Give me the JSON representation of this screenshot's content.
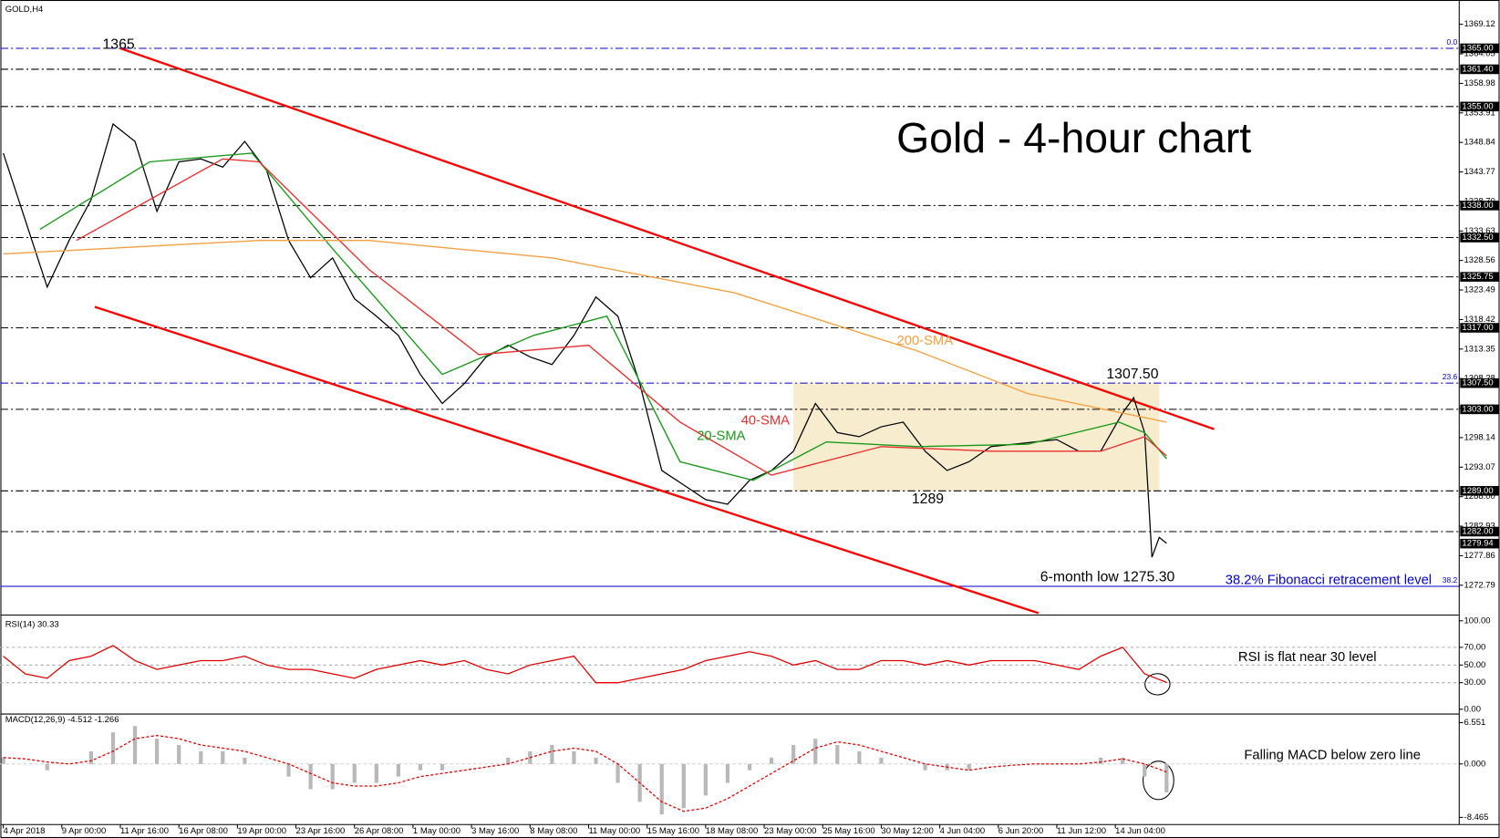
{
  "chart_data": [
    {
      "type": "line",
      "title": "GOLD,H4",
      "heading": "Gold - 4-hour chart",
      "xlim": [
        0,
        398
      ],
      "xticks": [
        {
          "value": 0,
          "label": "4 Apr 2018"
        },
        {
          "value": 16,
          "label": "9 Apr 00:00"
        },
        {
          "value": 32,
          "label": "11 Apr 16:00"
        },
        {
          "value": 48,
          "label": "16 Apr 08:00"
        },
        {
          "value": 64,
          "label": "19 Apr 00:00"
        },
        {
          "value": 80,
          "label": "23 Apr 16:00"
        },
        {
          "value": 96,
          "label": "26 Apr 08:00"
        },
        {
          "value": 112,
          "label": "1 May 00:00"
        },
        {
          "value": 128,
          "label": "3 May 16:00"
        },
        {
          "value": 144,
          "label": "8 May 08:00"
        },
        {
          "value": 160,
          "label": "11 May 00:00"
        },
        {
          "value": 176,
          "label": "15 May 16:00"
        },
        {
          "value": 192,
          "label": "18 May 08:00"
        },
        {
          "value": 208,
          "label": "23 May 00:00"
        },
        {
          "value": 224,
          "label": "25 May 16:00"
        },
        {
          "value": 240,
          "label": "30 May 12:00"
        },
        {
          "value": 256,
          "label": "4 Jun 04:00"
        },
        {
          "value": 272,
          "label": "6 Jun 20:00"
        },
        {
          "value": 288,
          "label": "11 Jun 12:00"
        },
        {
          "value": 304,
          "label": "14 Jun 04:00"
        }
      ],
      "ylim": [
        1268,
        1372.8
      ],
      "yticks": [
        1369.12,
        1364.05,
        1358.98,
        1353.91,
        1348.84,
        1343.77,
        {
          "value": 1338.7,
          "label": "1338.70"
        },
        1333.63,
        1328.56,
        1323.49,
        1318.42,
        1313.35,
        1308.28,
        1303.21,
        1298.14,
        1293.07,
        {
          "value": 1288,
          "label": "1288.00"
        },
        1282.93,
        1277.86,
        1272.79
      ],
      "levels": [
        {
          "value": 1361.4,
          "label": "1361.40"
        },
        {
          "value": 1355,
          "label": "1355.00"
        },
        {
          "value": 1338,
          "label": "1338.00"
        },
        {
          "value": 1332.5,
          "label": "1332.50"
        },
        {
          "value": 1325.75,
          "label": "1325.75"
        },
        {
          "value": 1317,
          "label": "1317.00"
        },
        {
          "value": 1303,
          "label": "1303.00"
        },
        {
          "value": 1289,
          "label": "1289.00"
        },
        {
          "value": 1282,
          "label": "1282.00"
        }
      ],
      "fib_levels": [
        {
          "value": 1365,
          "label": "0.0",
          "price_label": "1365.00"
        },
        {
          "value": 1307.5,
          "label": "23.6",
          "price_label": "1307.50"
        },
        {
          "value": 1272.6,
          "label": "38.2"
        }
      ],
      "fib_color": "#0000cc",
      "last_price": {
        "value": 1279.94,
        "label": "1279.94"
      },
      "range_box": {
        "x": [
          216,
          316
        ],
        "values": [
          1307.5,
          1289
        ],
        "color": "#f3dfae"
      },
      "trendlines": [
        {
          "x": [
            32,
            331
          ],
          "values": [
            1365,
            1299.6
          ],
          "color": "#ff0000"
        },
        {
          "x": [
            25,
            283
          ],
          "values": [
            1320.6,
            1268
          ],
          "color": "#ff0000"
        }
      ],
      "series": [
        {
          "color": "#000000",
          "x": [
            0,
            6,
            12,
            18,
            24,
            30,
            36,
            42,
            48,
            54,
            60,
            66,
            72,
            78,
            84,
            90,
            96,
            102,
            108,
            114,
            120,
            126,
            132,
            138,
            144,
            150,
            156,
            162,
            168,
            174,
            180,
            186,
            192,
            198,
            204,
            210,
            216,
            222,
            228,
            234,
            240,
            246,
            252,
            258,
            264,
            270,
            276,
            282,
            288,
            294,
            300,
            306,
            309,
            312,
            314,
            316,
            318
          ],
          "values": [
            1347,
            1335.5,
            1324,
            1332,
            1339,
            1352,
            1349,
            1337,
            1345.5,
            1346,
            1344.6,
            1349,
            1344,
            1332,
            1325.6,
            1329,
            1322,
            1319,
            1315.7,
            1309,
            1304,
            1307.4,
            1312,
            1314,
            1312,
            1310.7,
            1315.7,
            1322.3,
            1319,
            1307.4,
            1292.5,
            1290,
            1287.5,
            1286.7,
            1290.8,
            1292.5,
            1295.8,
            1304,
            1299,
            1298.3,
            1300,
            1300.8,
            1295.8,
            1292.5,
            1294,
            1296.6,
            1297,
            1297.4,
            1297.8,
            1295.8,
            1295.8,
            1302.4,
            1305,
            1299,
            1277.6,
            1281,
            1280
          ]
        },
        {
          "name": "20-SMA",
          "color": "#1a9a1a",
          "x": [
            10,
            40,
            68,
            90,
            120,
            145,
            165,
            185,
            205,
            225,
            250,
            280,
            305,
            312,
            318
          ],
          "values": [
            1333.9,
            1345.5,
            1347,
            1330.6,
            1309,
            1315.7,
            1319,
            1294,
            1290.8,
            1297.4,
            1296.6,
            1297,
            1300.8,
            1299,
            1294.5
          ]
        },
        {
          "name": "40-SMA",
          "color": "#e83030",
          "x": [
            20,
            60,
            70,
            100,
            130,
            160,
            185,
            210,
            240,
            270,
            300,
            312,
            318
          ],
          "values": [
            1332,
            1346,
            1345.5,
            1327,
            1312.4,
            1314,
            1300.8,
            1291.7,
            1296.6,
            1295.8,
            1295.8,
            1298.3,
            1295
          ]
        },
        {
          "name": "200-SMA",
          "color": "#f5a040",
          "x": [
            0,
            70,
            100,
            150,
            200,
            250,
            280,
            318
          ],
          "values": [
            1329.7,
            1332,
            1332,
            1329,
            1323,
            1313,
            1305.7,
            1300.8
          ]
        }
      ],
      "annotations": [
        "1365",
        "1307.50",
        "1289",
        "6-month low 1275.30",
        "38.2% Fibonacci retracement level"
      ]
    },
    {
      "type": "line",
      "title": "RSI(14) 30.33",
      "annotation": "RSI is flat near 30 level",
      "xlim": [
        0,
        398
      ],
      "ylim": [
        0,
        100
      ],
      "yticks": [
        {
          "value": 100,
          "label": "100.00"
        },
        {
          "value": 70,
          "label": "70.00"
        },
        {
          "value": 50,
          "label": "50.00"
        },
        {
          "value": 30,
          "label": "30.00"
        },
        {
          "value": 0,
          "label": "0.00"
        }
      ],
      "series": [
        {
          "color": "#e00000",
          "x": [
            0,
            6,
            12,
            18,
            24,
            30,
            36,
            42,
            48,
            54,
            60,
            66,
            72,
            78,
            84,
            90,
            96,
            102,
            108,
            114,
            120,
            126,
            132,
            138,
            144,
            150,
            156,
            162,
            168,
            174,
            180,
            186,
            192,
            198,
            204,
            210,
            216,
            222,
            228,
            234,
            240,
            246,
            252,
            258,
            264,
            270,
            276,
            282,
            288,
            294,
            300,
            306,
            312,
            318
          ],
          "values": [
            60,
            40,
            35,
            55,
            60,
            72,
            55,
            45,
            50,
            55,
            55,
            60,
            50,
            45,
            45,
            40,
            35,
            45,
            50,
            55,
            50,
            55,
            45,
            40,
            50,
            55,
            60,
            30,
            30,
            35,
            40,
            45,
            55,
            60,
            65,
            60,
            50,
            55,
            45,
            45,
            55,
            55,
            50,
            55,
            50,
            55,
            55,
            55,
            50,
            45,
            60,
            70,
            40,
            30.33
          ]
        }
      ]
    },
    {
      "type": "bar",
      "title": "MACD(12,26,9) -4.512 -1.266",
      "annotation": "Falling MACD below zero line",
      "xlim": [
        0,
        398
      ],
      "ylim": [
        -9.6,
        7.6
      ],
      "yticks": [
        6.551,
        {
          "value": 0,
          "label": "0.000"
        },
        -8.465
      ],
      "series": [
        {
          "type": "bar",
          "color": "#b8b8b8",
          "x": [
            0,
            6,
            12,
            18,
            24,
            30,
            36,
            42,
            48,
            54,
            60,
            66,
            72,
            78,
            84,
            90,
            96,
            102,
            108,
            114,
            120,
            126,
            132,
            138,
            144,
            150,
            156,
            162,
            168,
            174,
            180,
            186,
            192,
            198,
            204,
            210,
            216,
            222,
            228,
            234,
            240,
            246,
            252,
            258,
            264,
            270,
            276,
            282,
            288,
            294,
            300,
            306,
            312,
            318
          ],
          "values": [
            1,
            0,
            -1,
            0,
            2,
            5,
            6,
            4,
            3,
            2,
            2,
            1,
            0,
            -2,
            -4,
            -4,
            -3,
            -3,
            -2,
            -1,
            -1,
            0,
            0,
            1,
            2,
            3,
            2,
            1,
            -3,
            -6,
            -8,
            -7,
            -5,
            -3,
            -1,
            1,
            3,
            4,
            3,
            2,
            1,
            0,
            -1,
            -1,
            -1,
            0,
            0,
            0,
            0,
            0,
            1,
            1,
            -2,
            -4.512
          ]
        },
        {
          "type": "line",
          "color": "#e00000",
          "x": [
            0,
            6,
            12,
            18,
            24,
            30,
            36,
            42,
            48,
            54,
            60,
            66,
            72,
            78,
            84,
            90,
            96,
            102,
            108,
            114,
            120,
            126,
            132,
            138,
            144,
            150,
            156,
            162,
            168,
            174,
            180,
            186,
            192,
            198,
            204,
            210,
            216,
            222,
            228,
            234,
            240,
            246,
            252,
            258,
            264,
            270,
            276,
            282,
            288,
            294,
            300,
            306,
            312,
            318
          ],
          "values": [
            1,
            0.8,
            0.3,
            0,
            0.5,
            2,
            4,
            4.5,
            4,
            3,
            2.5,
            2,
            1,
            0,
            -1.5,
            -3,
            -3.5,
            -3.5,
            -3,
            -2,
            -1.5,
            -1,
            -0.5,
            0,
            1,
            2,
            2.5,
            2,
            0,
            -3,
            -6,
            -7.5,
            -7,
            -5.5,
            -3.5,
            -1.5,
            0.5,
            2.5,
            3.5,
            3,
            2,
            1,
            0,
            -0.5,
            -1,
            -0.5,
            -0.2,
            0,
            0,
            0,
            0.3,
            0.8,
            0,
            -1.266
          ]
        }
      ]
    }
  ]
}
